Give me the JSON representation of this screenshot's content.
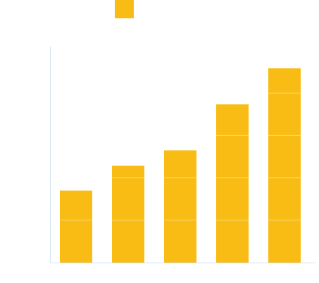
{
  "chart_data": {
    "type": "bar",
    "categories": [
      "",
      "",
      "",
      "",
      ""
    ],
    "values": [
      102,
      137,
      159,
      224,
      275
    ],
    "ylim": [
      0,
      306
    ],
    "grid": true,
    "grid_values": [
      60,
      120,
      180,
      240
    ],
    "legend": "top",
    "title": "",
    "xlabel": "",
    "ylabel": ""
  },
  "colors": {
    "bar": "#f9bc15",
    "axis": "#cfe3f2",
    "grid": "#f6d77a"
  }
}
